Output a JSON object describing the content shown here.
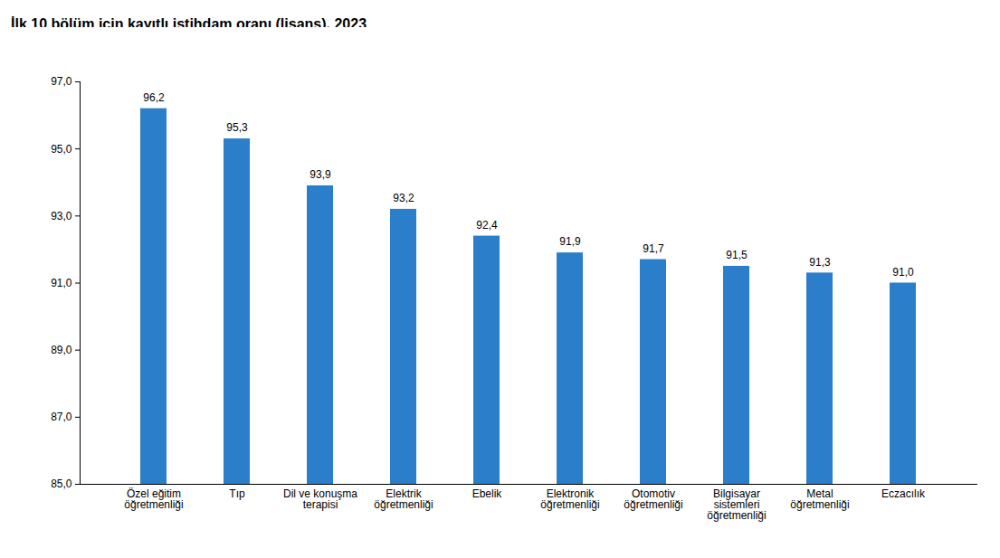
{
  "chart_data": {
    "type": "bar",
    "title": "İlk 10 bölüm için kayıtlı istihdam oranı (lisans), 2023",
    "y_label": "(%)",
    "categories": [
      "Özel eğitim\nöğretmenliği",
      "Tıp",
      "Dil ve konuşma\nterapisi",
      "Elektrik\nöğretmenliği",
      "Ebelik",
      "Elektronik\nöğretmenliği",
      "Otomotiv\nöğretmenliği",
      "Bilgisayar\nsistemleri\nöğretmenliği",
      "Metal\nöğretmenliği",
      "Eczacılık"
    ],
    "values": [
      96.2,
      95.3,
      93.9,
      93.2,
      92.4,
      91.9,
      91.7,
      91.5,
      91.3,
      91.0
    ],
    "value_labels": [
      "96,2",
      "95,3",
      "93,9",
      "93,2",
      "92,4",
      "91,9",
      "91,7",
      "91,5",
      "91,3",
      "91,0"
    ],
    "color": "#2b7fca",
    "ylim": [
      85,
      97
    ],
    "yticks": [
      {
        "value": 85,
        "label": "85,0"
      },
      {
        "value": 87,
        "label": "87,0"
      },
      {
        "value": 89,
        "label": "89,0"
      },
      {
        "value": 91,
        "label": "91,0"
      },
      {
        "value": 93,
        "label": "93,0"
      },
      {
        "value": 95,
        "label": "95,0"
      },
      {
        "value": 97,
        "label": "97,0"
      }
    ],
    "grid": false,
    "data_labels": true
  }
}
